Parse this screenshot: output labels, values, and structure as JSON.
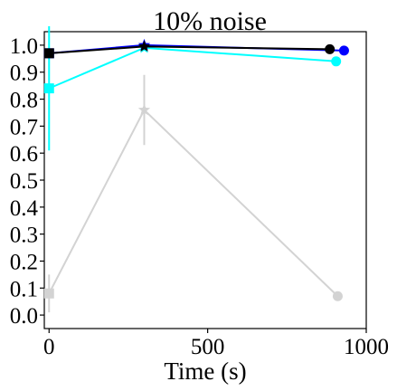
{
  "chart_data": {
    "type": "line",
    "title": "10% noise",
    "xlabel": "Time (s)",
    "ylabel": "",
    "xlim": [
      -15,
      1000
    ],
    "ylim": [
      -0.05,
      1.05
    ],
    "xticks": [
      0,
      500,
      1000
    ],
    "xtick_labels": [
      "0",
      "500",
      "1000"
    ],
    "yticks": [
      0.0,
      0.1,
      0.2,
      0.3,
      0.4,
      0.5,
      0.6,
      0.7,
      0.8,
      0.9,
      1.0
    ],
    "ytick_labels": [
      "0.0",
      "0.1",
      "0.2",
      "0.3",
      "0.4",
      "0.5",
      "0.6",
      "0.7",
      "0.8",
      "0.9",
      "1.0"
    ],
    "grid": false,
    "series": [
      {
        "color": "#d3d3d3",
        "x": [
          0,
          300,
          910
        ],
        "y": [
          0.08,
          0.76,
          0.07
        ],
        "yerr": [
          0.07,
          0.13,
          0.0
        ],
        "markers": [
          "square",
          "star",
          "circle"
        ]
      },
      {
        "color": "#00ffff",
        "x": [
          0,
          300,
          905
        ],
        "y": [
          0.84,
          0.99,
          0.94
        ],
        "yerr": [
          0.23,
          0.0,
          0.0
        ],
        "markers": [
          "square",
          "star",
          "circle"
        ]
      },
      {
        "color": "#0000ff",
        "x": [
          0,
          300,
          930
        ],
        "y": [
          0.97,
          1.0,
          0.98
        ],
        "yerr": [
          0.0,
          0.0,
          0.0
        ],
        "markers": [
          "square",
          "star",
          "circle"
        ]
      },
      {
        "color": "#000000",
        "x": [
          0,
          300,
          885
        ],
        "y": [
          0.97,
          0.995,
          0.985
        ],
        "yerr": [
          0.0,
          0.0,
          0.0
        ],
        "markers": [
          "square",
          "star",
          "circle"
        ]
      }
    ]
  }
}
